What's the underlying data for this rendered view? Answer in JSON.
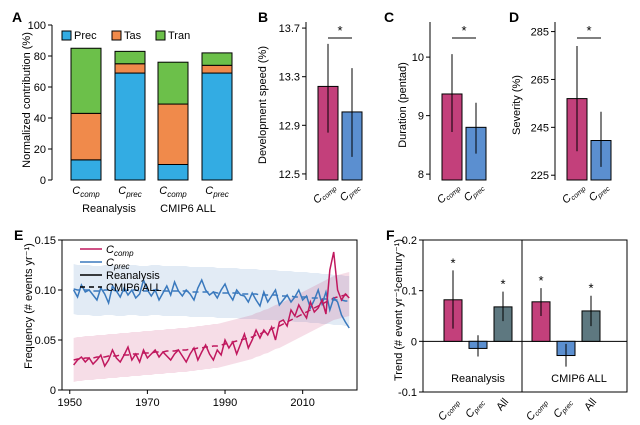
{
  "colors": {
    "prec": "#33ace3",
    "tas": "#f08a4b",
    "tran": "#6cc04a",
    "comp": "#c3407b",
    "cprec": "#5b8fd0",
    "all": "#5e7880",
    "line_comp": "#c0185e",
    "line_prec": "#3a79bd"
  },
  "chart_data": [
    {
      "panel": "A",
      "type": "bar",
      "ylabel": "Normalized contribution (%)",
      "ylim": [
        0,
        100
      ],
      "yticks": [
        "0",
        "20",
        "40",
        "60",
        "80",
        "100"
      ],
      "categories": [
        "Ccomp",
        "Cprec",
        "Ccomp",
        "Cprec"
      ],
      "category_subs": [
        "comp",
        "prec",
        "comp",
        "prec"
      ],
      "groups": [
        "Reanalysis",
        "CMIP6 ALL"
      ],
      "series": [
        {
          "name": "Prec",
          "values": [
            13,
            69,
            10,
            69
          ]
        },
        {
          "name": "Tas",
          "values": [
            30,
            6,
            39,
            5
          ]
        },
        {
          "name": "Tran",
          "values": [
            42,
            8,
            27,
            8
          ]
        }
      ]
    },
    {
      "panel": "B",
      "type": "bar",
      "ylabel": "Development speed (%)",
      "ylim": [
        12.45,
        13.75
      ],
      "yticks": [
        "12.5",
        "12.9",
        "13.3",
        "13.7"
      ],
      "categories": [
        "Ccomp",
        "Cprec"
      ],
      "category_subs": [
        "comp",
        "prec"
      ],
      "values": [
        13.22,
        13.01
      ],
      "err_low": [
        12.84,
        12.64
      ],
      "err_high": [
        13.57,
        13.37
      ],
      "significance": "*"
    },
    {
      "panel": "C",
      "type": "bar",
      "ylabel": "Duration (pentad)",
      "ylim": [
        7.9,
        10.6
      ],
      "yticks": [
        "8",
        "9",
        "10"
      ],
      "categories": [
        "Ccomp",
        "Cprec"
      ],
      "category_subs": [
        "comp",
        "prec"
      ],
      "values": [
        9.37,
        8.8
      ],
      "err_low": [
        8.72,
        8.35
      ],
      "err_high": [
        10.05,
        9.22
      ],
      "significance": "*"
    },
    {
      "panel": "D",
      "type": "bar",
      "ylabel": "Severity (%)",
      "ylim": [
        223,
        289
      ],
      "yticks": [
        "225",
        "245",
        "265",
        "285"
      ],
      "categories": [
        "Ccomp",
        "Cprec"
      ],
      "category_subs": [
        "comp",
        "prec"
      ],
      "values": [
        257,
        239.5
      ],
      "err_low": [
        235,
        228.5
      ],
      "err_high": [
        279,
        251.5
      ],
      "significance": "*"
    },
    {
      "panel": "E",
      "type": "line",
      "ylabel": "Frequency (# events yr⁻¹)",
      "xlim": [
        1948,
        2024
      ],
      "ylim": [
        0,
        0.15
      ],
      "xticks": [
        "1950",
        "1970",
        "1990",
        "2010"
      ],
      "yticks": [
        "0",
        "0.05",
        "0.10",
        "0.15"
      ],
      "legend": [
        {
          "name": "C",
          "sub": "comp"
        },
        {
          "name": "C",
          "sub": "prec"
        },
        {
          "name": "Reanalysis"
        },
        {
          "name": "CMIP6 ALL"
        }
      ],
      "x": [
        1951,
        1952,
        1953,
        1954,
        1955,
        1956,
        1957,
        1958,
        1959,
        1960,
        1961,
        1962,
        1963,
        1964,
        1965,
        1966,
        1967,
        1968,
        1969,
        1970,
        1971,
        1972,
        1973,
        1974,
        1975,
        1976,
        1977,
        1978,
        1979,
        1980,
        1981,
        1982,
        1983,
        1984,
        1985,
        1986,
        1987,
        1988,
        1989,
        1990,
        1991,
        1992,
        1993,
        1994,
        1995,
        1996,
        1997,
        1998,
        1999,
        2000,
        2001,
        2002,
        2003,
        2004,
        2005,
        2006,
        2007,
        2008,
        2009,
        2010,
        2011,
        2012,
        2013,
        2014,
        2015,
        2016,
        2017,
        2018,
        2019,
        2020,
        2021,
        2022
      ],
      "series": [
        {
          "name": "Ccomp Reanalysis",
          "values": [
            0.025,
            0.03,
            0.033,
            0.028,
            0.032,
            0.026,
            0.03,
            0.035,
            0.024,
            0.03,
            0.04,
            0.032,
            0.028,
            0.035,
            0.043,
            0.03,
            0.036,
            0.028,
            0.04,
            0.032,
            0.036,
            0.04,
            0.033,
            0.038,
            0.034,
            0.03,
            0.036,
            0.04,
            0.034,
            0.028,
            0.036,
            0.042,
            0.03,
            0.038,
            0.045,
            0.036,
            0.03,
            0.04,
            0.035,
            0.05,
            0.042,
            0.048,
            0.036,
            0.046,
            0.056,
            0.042,
            0.05,
            0.06,
            0.052,
            0.06,
            0.055,
            0.063,
            0.05,
            0.068,
            0.07,
            0.064,
            0.08,
            0.074,
            0.085,
            0.078,
            0.072,
            0.088,
            0.078,
            0.082,
            0.09,
            0.076,
            0.12,
            0.138,
            0.1,
            0.09,
            0.096,
            0.092
          ]
        },
        {
          "name": "Cprec Reanalysis",
          "values": [
            0.1,
            0.093,
            0.105,
            0.098,
            0.1,
            0.095,
            0.09,
            0.102,
            0.096,
            0.087,
            0.104,
            0.099,
            0.093,
            0.102,
            0.095,
            0.1,
            0.092,
            0.096,
            0.11,
            0.1,
            0.094,
            0.1,
            0.09,
            0.097,
            0.104,
            0.095,
            0.108,
            0.099,
            0.094,
            0.1,
            0.096,
            0.09,
            0.102,
            0.11,
            0.1,
            0.095,
            0.098,
            0.092,
            0.1,
            0.106,
            0.096,
            0.09,
            0.1,
            0.095,
            0.094,
            0.088,
            0.097,
            0.09,
            0.084,
            0.098,
            0.088,
            0.094,
            0.1,
            0.085,
            0.09,
            0.095,
            0.088,
            0.093,
            0.1,
            0.09,
            0.094,
            0.082,
            0.09,
            0.1,
            0.086,
            0.098,
            0.08,
            0.092,
            0.088,
            0.075,
            0.068,
            0.062
          ]
        },
        {
          "name": "Ccomp CMIP6 ALL",
          "values": [
            0.03,
            0.031,
            0.031,
            0.032,
            0.032,
            0.032,
            0.033,
            0.033,
            0.033,
            0.034,
            0.034,
            0.034,
            0.035,
            0.035,
            0.035,
            0.036,
            0.036,
            0.036,
            0.037,
            0.037,
            0.037,
            0.038,
            0.038,
            0.038,
            0.039,
            0.039,
            0.039,
            0.04,
            0.04,
            0.04,
            0.041,
            0.041,
            0.042,
            0.042,
            0.043,
            0.043,
            0.044,
            0.044,
            0.045,
            0.046,
            0.047,
            0.048,
            0.049,
            0.05,
            0.051,
            0.052,
            0.053,
            0.055,
            0.056,
            0.058,
            0.059,
            0.061,
            0.063,
            0.064,
            0.066,
            0.068,
            0.07,
            0.072,
            0.074,
            0.076,
            0.078,
            0.08,
            0.082,
            0.084,
            0.086,
            0.088,
            0.09,
            0.092,
            0.093,
            0.094,
            0.095,
            0.096
          ]
        },
        {
          "name": "Cprec CMIP6 ALL",
          "values": [
            0.101,
            0.1,
            0.1,
            0.1,
            0.1,
            0.099,
            0.099,
            0.099,
            0.1,
            0.1,
            0.1,
            0.099,
            0.099,
            0.099,
            0.1,
            0.1,
            0.1,
            0.099,
            0.099,
            0.099,
            0.1,
            0.1,
            0.1,
            0.099,
            0.099,
            0.099,
            0.099,
            0.099,
            0.099,
            0.099,
            0.098,
            0.098,
            0.098,
            0.098,
            0.098,
            0.098,
            0.098,
            0.097,
            0.097,
            0.097,
            0.097,
            0.097,
            0.097,
            0.096,
            0.096,
            0.096,
            0.096,
            0.096,
            0.095,
            0.095,
            0.095,
            0.095,
            0.095,
            0.094,
            0.094,
            0.094,
            0.094,
            0.093,
            0.093,
            0.093,
            0.093,
            0.092,
            0.092,
            0.092,
            0.091,
            0.091,
            0.091,
            0.09,
            0.09,
            0.09,
            0.089,
            0.089
          ]
        }
      ]
    },
    {
      "panel": "F",
      "type": "bar",
      "ylabel": "Trend (# event yr⁻¹century⁻¹)",
      "ylim": [
        -0.1,
        0.2
      ],
      "yticks": [
        "-0.1",
        "0",
        "0.1",
        "0.2"
      ],
      "groups": [
        "Reanalysis",
        "CMIP6 ALL"
      ],
      "categories": [
        "Ccomp",
        "Cprec",
        "All",
        "Ccomp",
        "Cprec",
        "All"
      ],
      "category_subs": [
        "comp",
        "prec",
        "",
        "comp",
        "prec",
        ""
      ],
      "values": [
        0.082,
        -0.014,
        0.068,
        0.078,
        -0.028,
        0.06
      ],
      "err_low": [
        0.025,
        -0.03,
        0.04,
        0.05,
        -0.05,
        0.03
      ],
      "err_high": [
        0.14,
        0.012,
        0.098,
        0.105,
        -0.005,
        0.09
      ],
      "significance": [
        "*",
        "",
        "*",
        "*",
        "",
        "*"
      ]
    }
  ]
}
